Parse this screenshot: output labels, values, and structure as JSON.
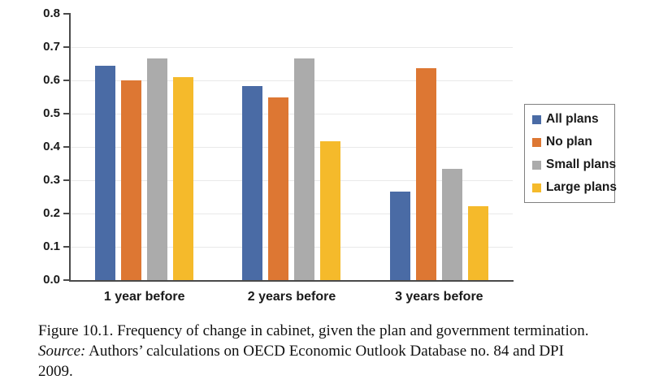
{
  "chart_data": {
    "type": "bar",
    "title": "",
    "xlabel": "",
    "ylabel": "",
    "categories": [
      "1 year before",
      "2 years before",
      "3 years before"
    ],
    "series": [
      {
        "name": "All plans",
        "color": "#4A6BA5",
        "values": [
          0.645,
          0.583,
          0.266
        ]
      },
      {
        "name": "No plan",
        "color": "#DD7733",
        "values": [
          0.6,
          0.55,
          0.636
        ]
      },
      {
        "name": "Small plans",
        "color": "#ABABAB",
        "values": [
          0.667,
          0.667,
          0.333
        ]
      },
      {
        "name": "Large plans",
        "color": "#F5BA2B",
        "values": [
          0.611,
          0.417,
          0.222
        ]
      }
    ],
    "ylim": [
      0,
      0.8
    ],
    "ytick_labels": [
      "0.0",
      "0.1",
      "0.2",
      "0.3",
      "0.4",
      "0.5",
      "0.6",
      "0.7",
      "0.8"
    ],
    "grid": true,
    "legend_position": "right"
  },
  "colors": {
    "axis": "#4a4a4a",
    "grid": "#e9e9e9",
    "text": "#1a1a1a",
    "legend_border": "#808080"
  },
  "caption": {
    "line1": "Figure 10.1. Frequency of change in cabinet, given the plan and government termination.",
    "source_label": "Source:",
    "line2_rest": "Authors’ calculations on OECD Economic Outlook Database no. 84 and DPI",
    "line3": "2009."
  }
}
